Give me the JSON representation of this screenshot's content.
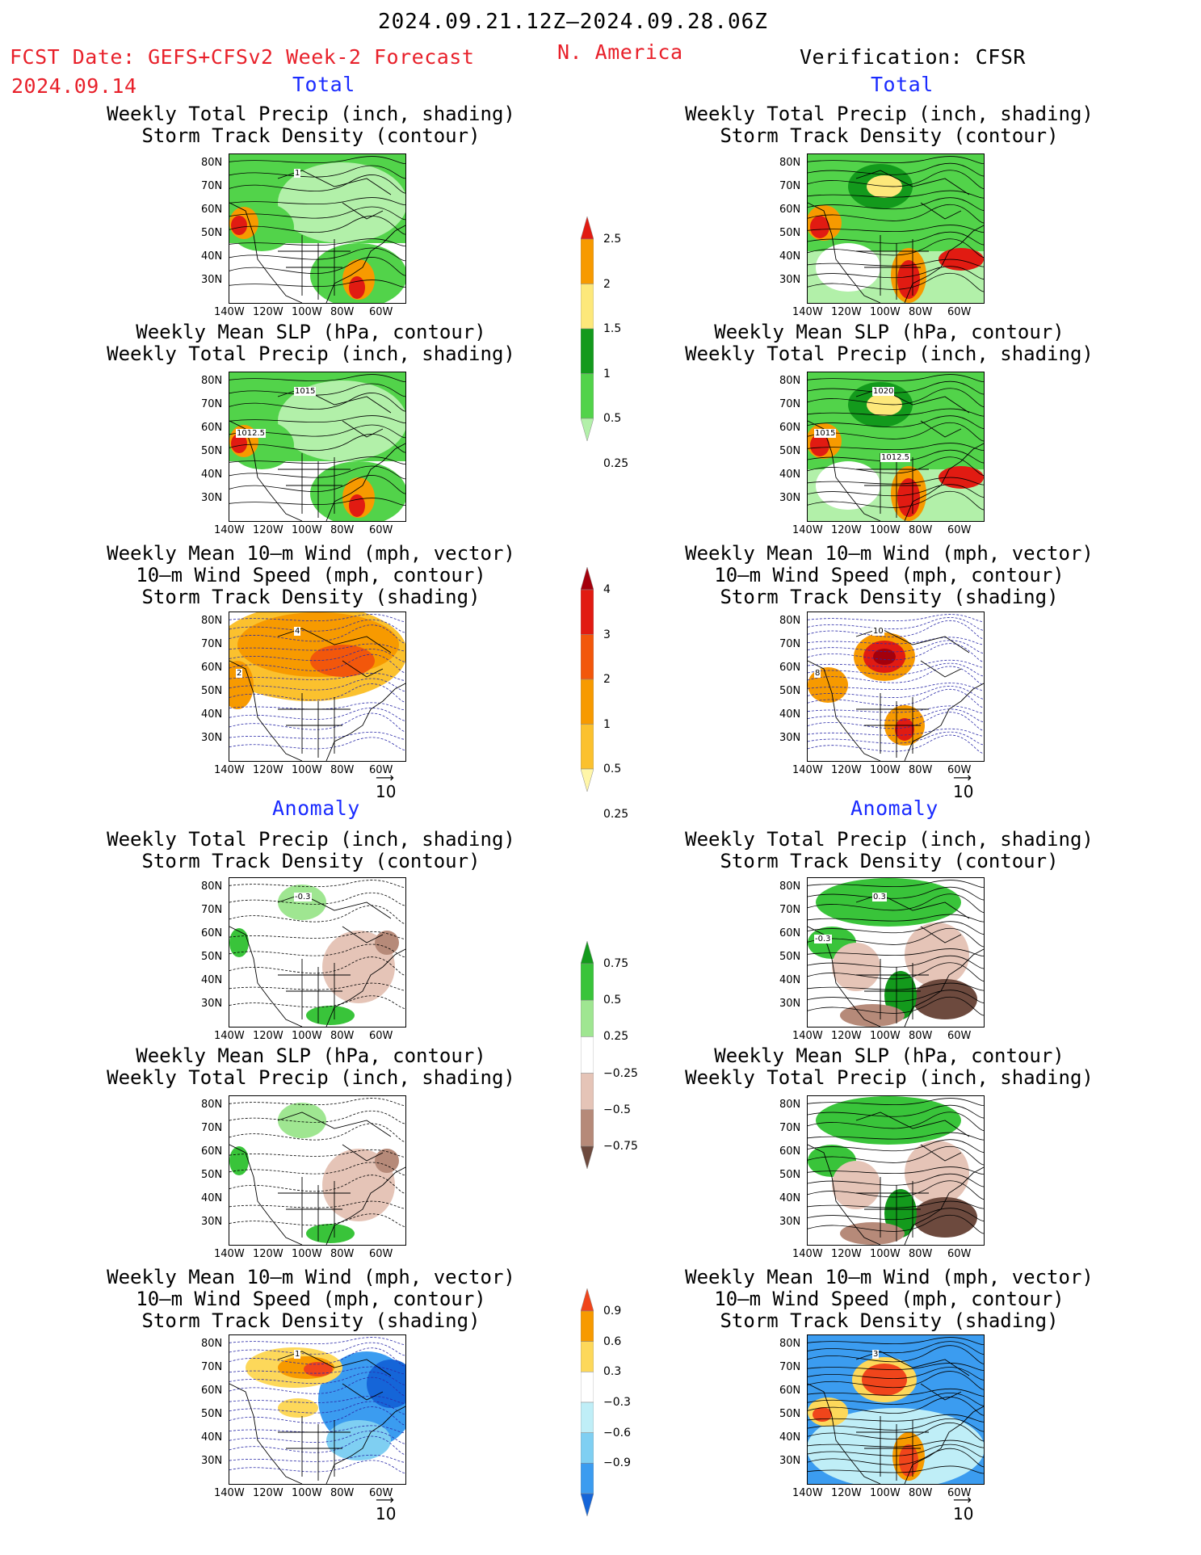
{
  "header": {
    "period": "2024.09.21.12Z–2024.09.28.06Z",
    "fcst_label": "FCST Date: GEFS+CFSv2 Week-2 Forecast",
    "fcst_date": "2024.09.14",
    "region": "N. America",
    "verification": "Verification: CFSR"
  },
  "sections": {
    "total": "Total",
    "anomaly": "Anomaly"
  },
  "panel_titles": {
    "precip_storm": "Weekly Total Precip (inch, shading)\nStorm Track Density (contour)",
    "slp_precip": "Weekly Mean SLP (hPa, contour)\nWeekly Total Precip (inch, shading)",
    "wind_storm": "Weekly Mean 10–m Wind (mph, vector)\n10–m Wind Speed (mph, contour)\nStorm Track Density (shading)"
  },
  "axes": {
    "lat_ticks": [
      "80N",
      "70N",
      "60N",
      "50N",
      "40N",
      "30N"
    ],
    "lon_ticks": [
      "140W",
      "120W",
      "100W",
      "80W",
      "60W"
    ]
  },
  "vector_ref": "10",
  "contour_labels": {
    "slp_fcst": [
      "1015",
      "1012.5"
    ],
    "slp_cfsr": [
      "1020",
      "1015",
      "1012.5"
    ],
    "anom_precip": [
      "-0.3"
    ],
    "anom_precip_cfsr": [
      "0.3",
      "-0.3"
    ],
    "storm_fcst": [
      "1"
    ],
    "wind_fcst": [
      "4",
      "2"
    ],
    "wind_cfsr": [
      "10",
      "8"
    ],
    "anom_wind_fcst": [
      "1"
    ],
    "anom_wind_cfsr": [
      "3"
    ]
  },
  "colorbars": {
    "precip_total": {
      "labels": [
        "2.5",
        "2",
        "1.5",
        "1",
        "0.5",
        "0.25"
      ],
      "colors": [
        "#e11b12",
        "#f79a00",
        "#fde87a",
        "#139a1c",
        "#52d34a",
        "#b2f0a9"
      ]
    },
    "storm_total": {
      "labels": [
        "4",
        "3",
        "2",
        "1",
        "0.5",
        "0.25"
      ],
      "colors": [
        "#a4000c",
        "#e11b12",
        "#f2570b",
        "#f79a00",
        "#fbc12e",
        "#fff6a8"
      ]
    },
    "precip_anom": {
      "labels": [
        "0.75",
        "0.5",
        "0.25",
        "−0.25",
        "−0.5",
        "−0.75"
      ],
      "colors": [
        "#139a1c",
        "#39c43a",
        "#9fe691",
        "#ffffff",
        "#e5c4b7",
        "#b68a79",
        "#6d4a3e"
      ]
    },
    "storm_anom": {
      "labels": [
        "0.9",
        "0.6",
        "0.3",
        "−0.3",
        "−0.6",
        "−0.9"
      ],
      "colors": [
        "#f0451b",
        "#f79a00",
        "#fdd85a",
        "#ffffff",
        "#bfeef7",
        "#7fcff2",
        "#3b9cf0",
        "#1565d8"
      ]
    }
  }
}
